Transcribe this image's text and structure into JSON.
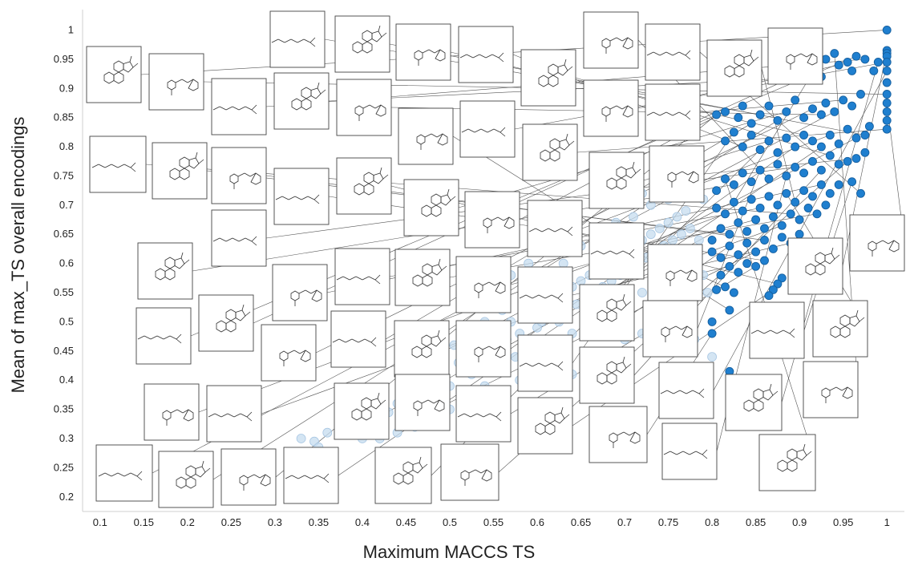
{
  "chart_data": {
    "type": "scatter",
    "title": "",
    "xlabel": "Maximum MACCS  TS",
    "ylabel": "Mean of max_TS overall encodings",
    "xlim": [
      0.08,
      1.02
    ],
    "ylim": [
      0.175,
      1.035
    ],
    "xticks": [
      "0.1",
      "0.15",
      "0.2",
      "0.25",
      "0.3",
      "0.35",
      "0.4",
      "0.45",
      "0.5",
      "0.55",
      "0.6",
      "0.65",
      "0.7",
      "0.75",
      "0.8",
      "0.85",
      "0.9",
      "0.95",
      "1"
    ],
    "yticks": [
      "0.2",
      "0.25",
      "0.3",
      "0.35",
      "0.4",
      "0.45",
      "0.5",
      "0.55",
      "0.6",
      "0.65",
      "0.7",
      "0.75",
      "0.8",
      "0.85",
      "0.9",
      "0.95",
      "1"
    ],
    "grid": false,
    "colors": {
      "highlighted": "#1f7fcf",
      "highlighted_edge": "#155f9f",
      "background": "#c5dcef",
      "background_edge": "#a9c7e3",
      "leader_line": "#555555",
      "thumbnail_border": "#444444"
    },
    "series": [
      {
        "role": "highlighted",
        "points": [
          [
            1,
            1
          ],
          [
            1,
            0.965
          ],
          [
            1,
            0.96
          ],
          [
            1,
            0.955
          ],
          [
            1,
            0.945
          ],
          [
            1,
            0.93
          ],
          [
            1,
            0.91
          ],
          [
            1,
            0.89
          ],
          [
            1,
            0.875
          ],
          [
            1,
            0.86
          ],
          [
            1,
            0.845
          ],
          [
            1,
            0.83
          ],
          [
            0.99,
            0.945
          ],
          [
            0.985,
            0.93
          ],
          [
            0.975,
            0.95
          ],
          [
            0.965,
            0.955
          ],
          [
            0.96,
            0.93
          ],
          [
            0.955,
            0.945
          ],
          [
            0.945,
            0.94
          ],
          [
            0.94,
            0.96
          ],
          [
            0.93,
            0.95
          ],
          [
            0.925,
            0.92
          ],
          [
            0.915,
            0.935
          ],
          [
            0.97,
            0.89
          ],
          [
            0.96,
            0.87
          ],
          [
            0.95,
            0.88
          ],
          [
            0.94,
            0.86
          ],
          [
            0.93,
            0.875
          ],
          [
            0.925,
            0.855
          ],
          [
            0.915,
            0.865
          ],
          [
            0.905,
            0.85
          ],
          [
            0.895,
            0.88
          ],
          [
            0.885,
            0.86
          ],
          [
            0.875,
            0.845
          ],
          [
            0.865,
            0.87
          ],
          [
            0.855,
            0.855
          ],
          [
            0.845,
            0.84
          ],
          [
            0.835,
            0.87
          ],
          [
            0.83,
            0.85
          ],
          [
            0.815,
            0.86
          ],
          [
            0.805,
            0.855
          ],
          [
            0.98,
            0.835
          ],
          [
            0.975,
            0.82
          ],
          [
            0.965,
            0.815
          ],
          [
            0.955,
            0.83
          ],
          [
            0.945,
            0.805
          ],
          [
            0.935,
            0.82
          ],
          [
            0.925,
            0.8
          ],
          [
            0.915,
            0.81
          ],
          [
            0.905,
            0.82
          ],
          [
            0.895,
            0.8
          ],
          [
            0.885,
            0.815
          ],
          [
            0.875,
            0.79
          ],
          [
            0.865,
            0.81
          ],
          [
            0.855,
            0.795
          ],
          [
            0.845,
            0.82
          ],
          [
            0.835,
            0.8
          ],
          [
            0.825,
            0.825
          ],
          [
            0.815,
            0.81
          ],
          [
            0.975,
            0.79
          ],
          [
            0.965,
            0.78
          ],
          [
            0.955,
            0.775
          ],
          [
            0.945,
            0.77
          ],
          [
            0.935,
            0.785
          ],
          [
            0.925,
            0.76
          ],
          [
            0.915,
            0.775
          ],
          [
            0.905,
            0.755
          ],
          [
            0.895,
            0.765
          ],
          [
            0.885,
            0.75
          ],
          [
            0.875,
            0.77
          ],
          [
            0.865,
            0.745
          ],
          [
            0.855,
            0.76
          ],
          [
            0.845,
            0.74
          ],
          [
            0.835,
            0.755
          ],
          [
            0.825,
            0.735
          ],
          [
            0.815,
            0.745
          ],
          [
            0.805,
            0.725
          ],
          [
            0.97,
            0.72
          ],
          [
            0.96,
            0.74
          ],
          [
            0.945,
            0.735
          ],
          [
            0.935,
            0.72
          ],
          [
            0.925,
            0.735
          ],
          [
            0.915,
            0.715
          ],
          [
            0.905,
            0.725
          ],
          [
            0.895,
            0.705
          ],
          [
            0.885,
            0.72
          ],
          [
            0.875,
            0.7
          ],
          [
            0.865,
            0.715
          ],
          [
            0.855,
            0.695
          ],
          [
            0.845,
            0.71
          ],
          [
            0.835,
            0.69
          ],
          [
            0.825,
            0.705
          ],
          [
            0.815,
            0.685
          ],
          [
            0.805,
            0.695
          ],
          [
            0.93,
            0.7
          ],
          [
            0.92,
            0.685
          ],
          [
            0.91,
            0.695
          ],
          [
            0.9,
            0.675
          ],
          [
            0.89,
            0.685
          ],
          [
            0.88,
            0.665
          ],
          [
            0.87,
            0.68
          ],
          [
            0.86,
            0.66
          ],
          [
            0.85,
            0.675
          ],
          [
            0.84,
            0.655
          ],
          [
            0.83,
            0.67
          ],
          [
            0.82,
            0.65
          ],
          [
            0.81,
            0.66
          ],
          [
            0.8,
            0.64
          ],
          [
            0.9,
            0.65
          ],
          [
            0.89,
            0.635
          ],
          [
            0.88,
            0.645
          ],
          [
            0.87,
            0.625
          ],
          [
            0.86,
            0.64
          ],
          [
            0.85,
            0.62
          ],
          [
            0.84,
            0.635
          ],
          [
            0.83,
            0.615
          ],
          [
            0.82,
            0.63
          ],
          [
            0.81,
            0.61
          ],
          [
            0.8,
            0.62
          ],
          [
            0.86,
            0.605
          ],
          [
            0.85,
            0.595
          ],
          [
            0.84,
            0.6
          ],
          [
            0.83,
            0.585
          ],
          [
            0.82,
            0.595
          ],
          [
            0.81,
            0.58
          ],
          [
            0.88,
            0.575
          ],
          [
            0.875,
            0.565
          ],
          [
            0.87,
            0.555
          ],
          [
            0.865,
            0.545
          ],
          [
            0.825,
            0.55
          ],
          [
            0.815,
            0.56
          ],
          [
            0.805,
            0.555
          ],
          [
            0.8,
            0.5
          ],
          [
            0.82,
            0.52
          ],
          [
            0.8,
            0.48
          ],
          [
            0.82,
            0.415
          ]
        ]
      },
      {
        "role": "background",
        "points": [
          [
            0.33,
            0.3
          ],
          [
            0.345,
            0.295
          ],
          [
            0.35,
            0.285
          ],
          [
            0.36,
            0.31
          ],
          [
            0.375,
            0.32
          ],
          [
            0.39,
            0.335
          ],
          [
            0.4,
            0.3
          ],
          [
            0.405,
            0.46
          ],
          [
            0.42,
            0.355
          ],
          [
            0.43,
            0.345
          ],
          [
            0.44,
            0.36
          ],
          [
            0.45,
            0.38
          ],
          [
            0.455,
            0.34
          ],
          [
            0.46,
            0.41
          ],
          [
            0.47,
            0.375
          ],
          [
            0.48,
            0.42
          ],
          [
            0.49,
            0.44
          ],
          [
            0.5,
            0.39
          ],
          [
            0.505,
            0.46
          ],
          [
            0.51,
            0.43
          ],
          [
            0.52,
            0.48
          ],
          [
            0.525,
            0.41
          ],
          [
            0.53,
            0.45
          ],
          [
            0.535,
            0.47
          ],
          [
            0.54,
            0.5
          ],
          [
            0.545,
            0.43
          ],
          [
            0.55,
            0.49
          ],
          [
            0.555,
            0.45
          ],
          [
            0.56,
            0.52
          ],
          [
            0.565,
            0.47
          ],
          [
            0.57,
            0.5
          ],
          [
            0.575,
            0.44
          ],
          [
            0.58,
            0.48
          ],
          [
            0.585,
            0.51
          ],
          [
            0.59,
            0.46
          ],
          [
            0.595,
            0.53
          ],
          [
            0.6,
            0.49
          ],
          [
            0.605,
            0.5
          ],
          [
            0.61,
            0.47
          ],
          [
            0.615,
            0.52
          ],
          [
            0.62,
            0.54
          ],
          [
            0.625,
            0.5
          ],
          [
            0.63,
            0.55
          ],
          [
            0.635,
            0.52
          ],
          [
            0.64,
            0.56
          ],
          [
            0.645,
            0.53
          ],
          [
            0.65,
            0.57
          ],
          [
            0.655,
            0.54
          ],
          [
            0.66,
            0.58
          ],
          [
            0.665,
            0.55
          ],
          [
            0.67,
            0.59
          ],
          [
            0.675,
            0.56
          ],
          [
            0.68,
            0.6
          ],
          [
            0.685,
            0.57
          ],
          [
            0.69,
            0.61
          ],
          [
            0.695,
            0.58
          ],
          [
            0.7,
            0.62
          ],
          [
            0.705,
            0.59
          ],
          [
            0.71,
            0.63
          ],
          [
            0.715,
            0.6
          ],
          [
            0.72,
            0.64
          ],
          [
            0.725,
            0.61
          ],
          [
            0.73,
            0.65
          ],
          [
            0.735,
            0.62
          ],
          [
            0.74,
            0.66
          ],
          [
            0.745,
            0.63
          ],
          [
            0.75,
            0.67
          ],
          [
            0.755,
            0.64
          ],
          [
            0.76,
            0.68
          ],
          [
            0.765,
            0.65
          ],
          [
            0.77,
            0.69
          ],
          [
            0.775,
            0.66
          ],
          [
            0.78,
            0.61
          ],
          [
            0.785,
            0.64
          ],
          [
            0.79,
            0.58
          ],
          [
            0.795,
            0.55
          ],
          [
            0.6,
            0.42
          ],
          [
            0.62,
            0.45
          ],
          [
            0.64,
            0.48
          ],
          [
            0.66,
            0.5
          ],
          [
            0.68,
            0.52
          ],
          [
            0.7,
            0.54
          ],
          [
            0.72,
            0.55
          ],
          [
            0.74,
            0.52
          ],
          [
            0.76,
            0.5
          ],
          [
            0.78,
            0.47
          ],
          [
            0.8,
            0.44
          ],
          [
            0.78,
            0.4
          ],
          [
            0.76,
            0.42
          ],
          [
            0.74,
            0.45
          ],
          [
            0.72,
            0.48
          ],
          [
            0.7,
            0.47
          ],
          [
            0.68,
            0.44
          ],
          [
            0.66,
            0.43
          ],
          [
            0.64,
            0.41
          ],
          [
            0.62,
            0.39
          ],
          [
            0.58,
            0.4
          ],
          [
            0.56,
            0.38
          ],
          [
            0.54,
            0.39
          ],
          [
            0.52,
            0.37
          ],
          [
            0.5,
            0.35
          ],
          [
            0.48,
            0.33
          ],
          [
            0.46,
            0.32
          ],
          [
            0.44,
            0.31
          ],
          [
            0.42,
            0.3
          ],
          [
            0.55,
            0.56
          ],
          [
            0.57,
            0.58
          ],
          [
            0.59,
            0.6
          ],
          [
            0.61,
            0.62
          ],
          [
            0.63,
            0.6
          ],
          [
            0.65,
            0.63
          ],
          [
            0.67,
            0.65
          ],
          [
            0.69,
            0.67
          ],
          [
            0.71,
            0.68
          ],
          [
            0.73,
            0.7
          ],
          [
            0.75,
            0.71
          ],
          [
            0.77,
            0.72
          ],
          [
            0.79,
            0.71
          ],
          [
            0.74,
            0.74
          ],
          [
            0.72,
            0.72
          ]
        ]
      }
    ],
    "thumbnail_count": 70
  }
}
